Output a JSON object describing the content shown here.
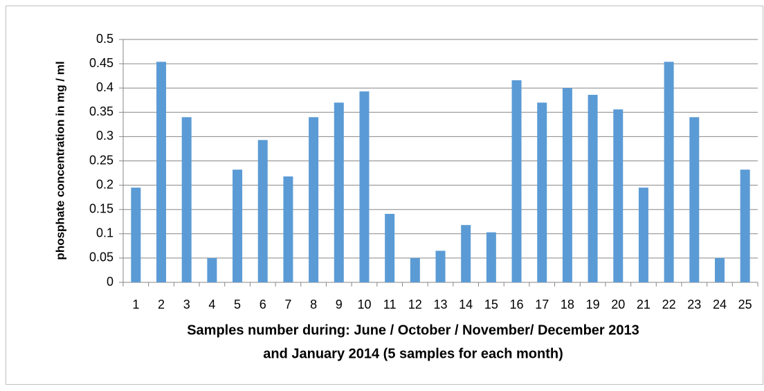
{
  "chart_data": {
    "type": "bar",
    "categories": [
      "1",
      "2",
      "3",
      "4",
      "5",
      "6",
      "7",
      "8",
      "9",
      "10",
      "11",
      "12",
      "13",
      "14",
      "15",
      "16",
      "17",
      "18",
      "19",
      "20",
      "21",
      "22",
      "23",
      "24",
      "25"
    ],
    "values": [
      0.195,
      0.454,
      0.34,
      0.05,
      0.232,
      0.293,
      0.218,
      0.34,
      0.37,
      0.393,
      0.141,
      0.05,
      0.065,
      0.118,
      0.103,
      0.416,
      0.37,
      0.4,
      0.386,
      0.356,
      0.195,
      0.454,
      0.34,
      0.05,
      0.232
    ],
    "color": "#5b9bd5",
    "ylim": [
      0,
      0.5
    ],
    "yticks": [
      0,
      0.05,
      0.1,
      0.15,
      0.2,
      0.25,
      0.3,
      0.35,
      0.4,
      0.45,
      0.5
    ],
    "grid": true,
    "y_label": "phosphate concentration in mg / ml",
    "x_label": [
      "Samples number during:  June / October / November/ December 2013",
      "and January 2014 (5 samples for each month)"
    ]
  }
}
